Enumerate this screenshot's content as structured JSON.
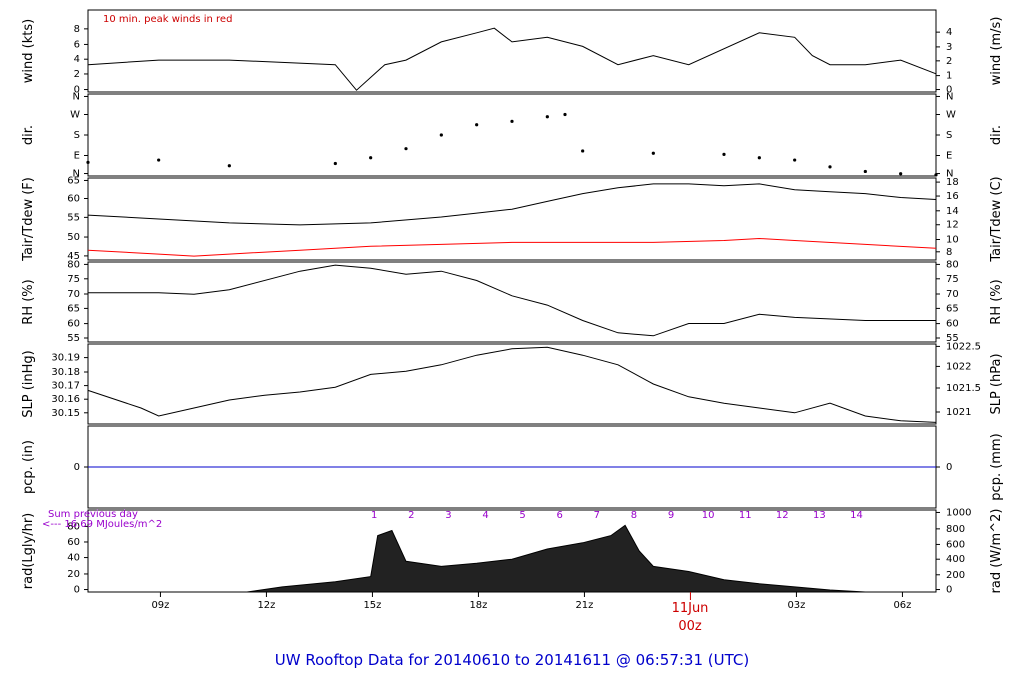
{
  "title": "UW Rooftop Data for 20140610  to  20141611 @ 06:57:31  (UTC)",
  "colors": {
    "line": "#000000",
    "peak": "#ff0000",
    "dew": "#ff0000",
    "precip": "#0000cc",
    "annot": "#9900cc",
    "title": "#0000cc",
    "date": "#cc0000"
  },
  "x_axis": {
    "ticks": [
      "09z",
      "12z",
      "15z",
      "18z",
      "21z",
      "03z",
      "06z"
    ],
    "day_label": "11Jun",
    "day_hour": "00z"
  },
  "panels": {
    "wind": {
      "ylabel_left": "wind (kts)",
      "ylabel_right": "wind (m/s)",
      "annotation": "10 min. peak winds in red",
      "ticks_left": [
        "0",
        "2",
        "4",
        "6",
        "8"
      ],
      "ticks_right": [
        "0",
        "1",
        "2",
        "3",
        "4"
      ]
    },
    "dir": {
      "ylabel_left": "dir.",
      "ylabel_right": "dir.",
      "ticks_left": [
        "N",
        "E",
        "S",
        "W",
        "N"
      ],
      "ticks_right": [
        "N",
        "E",
        "S",
        "W",
        "N"
      ]
    },
    "temp": {
      "ylabel_left": "Tair/Tdew (F)",
      "ylabel_right": "Tair/Tdew (C)",
      "ticks_left": [
        "45",
        "50",
        "55",
        "60",
        "65"
      ],
      "ticks_right": [
        "8",
        "10",
        "12",
        "14",
        "16",
        "18"
      ]
    },
    "rh": {
      "ylabel_left": "RH (%)",
      "ylabel_right": "RH (%)",
      "ticks_left": [
        "55",
        "60",
        "65",
        "70",
        "75",
        "80"
      ],
      "ticks_right": [
        "55",
        "60",
        "65",
        "70",
        "75",
        "80"
      ]
    },
    "slp": {
      "ylabel_left": "SLP (inHg)",
      "ylabel_right": "SLP (hPa)",
      "ticks_left": [
        "30.15",
        "30.16",
        "30.17",
        "30.18",
        "30.19"
      ],
      "ticks_right": [
        "1021",
        "1021.5",
        "1022",
        "1022.5"
      ]
    },
    "pcp": {
      "ylabel_left": "pcp. (in)",
      "ylabel_right": "pcp. (mm)",
      "ticks_left": [
        "0"
      ],
      "ticks_right": [
        "0"
      ]
    },
    "rad": {
      "ylabel_left": "rad(Lgly/hr)",
      "ylabel_right": "rad (W/m^2)",
      "ticks_left": [
        "0",
        "20",
        "40",
        "60",
        "80"
      ],
      "ticks_right": [
        "0",
        "200",
        "400",
        "600",
        "800",
        "1000"
      ],
      "annotation_1": "Sum previous day",
      "annotation_2": "<--- 16.69 MJoules/m^2",
      "hour_marks": [
        "1",
        "2",
        "3",
        "4",
        "5",
        "6",
        "7",
        "8",
        "9",
        "10",
        "11",
        "12",
        "13",
        "14"
      ]
    }
  },
  "chart_data": {
    "type": "line",
    "x_unit": "hours UTC from 2014-06-10 06:57",
    "x_range": [
      0,
      24
    ],
    "x_tick_hours": [
      2.05,
      5.05,
      8.05,
      11.05,
      14.05,
      20.05,
      23.05
    ],
    "series": [
      {
        "name": "Tair",
        "unit": "F",
        "ylim": [
          45,
          66
        ],
        "x": [
          0,
          2,
          4,
          6,
          8,
          10,
          11,
          12,
          13,
          14,
          15,
          16,
          17,
          18,
          19,
          20,
          21,
          22,
          23,
          24
        ],
        "values": [
          56.5,
          55.5,
          54.5,
          54,
          54.5,
          56,
          57,
          58,
          60,
          62,
          63.5,
          64.5,
          64.5,
          64,
          64.5,
          63,
          62.5,
          62,
          61,
          60.5
        ]
      },
      {
        "name": "Tdew",
        "unit": "F",
        "ylim": [
          45,
          66
        ],
        "x": [
          0,
          2,
          3,
          4,
          6,
          8,
          10,
          12,
          14,
          16,
          18,
          19,
          20,
          22,
          24
        ],
        "values": [
          47.5,
          46.5,
          46,
          46.5,
          47.5,
          48.5,
          49,
          49.5,
          49.5,
          49.5,
          50,
          50.5,
          50,
          49,
          48
        ]
      },
      {
        "name": "RH",
        "unit": "%",
        "ylim": [
          55,
          81
        ],
        "x": [
          0,
          2,
          3,
          4,
          6,
          7,
          8,
          9,
          10,
          11,
          12,
          13,
          14,
          15,
          16,
          17,
          18,
          19,
          20,
          22,
          24
        ],
        "values": [
          71,
          71,
          70.5,
          72,
          78,
          80,
          79,
          77,
          78,
          75,
          70,
          67,
          62,
          58,
          57,
          61,
          61,
          64,
          63,
          62,
          62
        ]
      },
      {
        "name": "SLP",
        "unit": "inHg",
        "ylim": [
          30.145,
          30.195
        ],
        "x": [
          0,
          1.5,
          2,
          3,
          4,
          5,
          6,
          7,
          8,
          9,
          10,
          11,
          12,
          13,
          14,
          15,
          16,
          17,
          18,
          19,
          20,
          21,
          22,
          23,
          24
        ],
        "values": [
          30.166,
          30.155,
          30.15,
          30.155,
          30.16,
          30.163,
          30.165,
          30.168,
          30.176,
          30.178,
          30.182,
          30.188,
          30.192,
          30.193,
          30.188,
          30.182,
          30.17,
          30.162,
          30.158,
          30.155,
          30.152,
          30.158,
          30.15,
          30.147,
          30.146
        ]
      },
      {
        "name": "pcp",
        "unit": "in",
        "ylim": [
          -0.1,
          0.1
        ],
        "x": [
          0,
          24
        ],
        "values": [
          0,
          0
        ]
      },
      {
        "name": "rad",
        "unit": "Lgly/hr",
        "ylim": [
          0,
          80
        ],
        "x": [
          0,
          4.5,
          5.5,
          7,
          8,
          8.2,
          8.6,
          9,
          10,
          11,
          12,
          13,
          14,
          14.8,
          15.2,
          15.6,
          16,
          17,
          18,
          19,
          20,
          21,
          22,
          24
        ],
        "values": [
          0,
          0,
          5,
          10,
          15,
          55,
          60,
          30,
          25,
          28,
          32,
          42,
          48,
          55,
          65,
          40,
          25,
          20,
          12,
          8,
          5,
          2,
          0,
          0
        ]
      },
      {
        "name": "wind_mean",
        "unit": "kts",
        "ylim": [
          0,
          9
        ],
        "x": [
          0,
          2,
          4,
          7,
          7.6,
          8.4,
          9,
          10,
          11,
          11.5,
          12,
          13,
          14,
          15,
          16,
          17,
          19,
          20,
          20.5,
          21,
          22,
          23,
          24
        ],
        "values": [
          3,
          3.5,
          3.5,
          3,
          0.2,
          3,
          3.5,
          5.5,
          6.5,
          7,
          5.5,
          6,
          5,
          3,
          4,
          3,
          6.5,
          6,
          4,
          3,
          3,
          3.5,
          2
        ]
      },
      {
        "name": "dir_deg",
        "unit": "deg",
        "ylim": [
          0,
          360
        ],
        "x": [
          0,
          2,
          4,
          7,
          8,
          9,
          10,
          11,
          12,
          13,
          13.5,
          14,
          16,
          18,
          19,
          20,
          21,
          22,
          23,
          24
        ],
        "values": [
          60,
          70,
          45,
          55,
          80,
          120,
          180,
          225,
          240,
          260,
          270,
          110,
          100,
          95,
          80,
          70,
          40,
          20,
          10,
          5
        ]
      }
    ]
  }
}
